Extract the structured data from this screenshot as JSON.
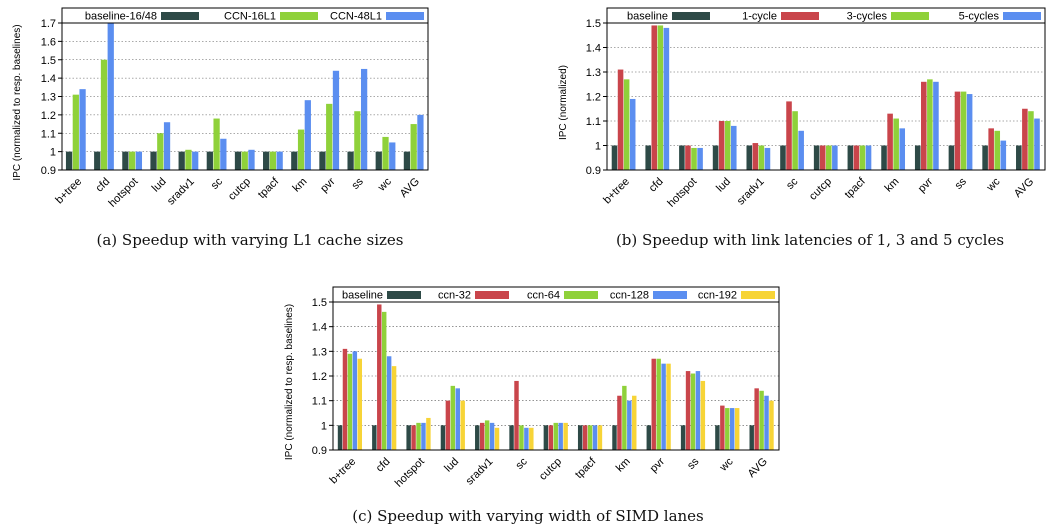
{
  "chart_data": [
    {
      "type": "bar",
      "caption": "(a) Speedup with varying L1 cache sizes",
      "ylabel": "IPC (normalized to resp. baselines)",
      "ylim": [
        0.9,
        1.7
      ],
      "yticks": [
        "0.9",
        "1",
        "1.1",
        "1.2",
        "1.3",
        "1.4",
        "1.5",
        "1.6",
        "1.7"
      ],
      "grid": "dashed horizontal",
      "legend_position": "top",
      "categories": [
        "b+tree",
        "cfd",
        "hotspot",
        "lud",
        "sradv1",
        "sc",
        "cutcp",
        "tpacf",
        "km",
        "pvr",
        "ss",
        "wc",
        "AVG"
      ],
      "series": [
        {
          "name": "baseline-16/48",
          "color": "#2e4a47",
          "values": [
            1,
            1,
            1,
            1,
            1,
            1,
            1,
            1,
            1,
            1,
            1,
            1,
            1
          ]
        },
        {
          "name": "CCN-16L1",
          "color": "#8fd13a",
          "values": [
            1.31,
            1.5,
            1.0,
            1.1,
            1.01,
            1.18,
            1.0,
            1.0,
            1.12,
            1.26,
            1.22,
            1.08,
            1.15
          ]
        },
        {
          "name": "CCN-48L1",
          "color": "#5b8ef0",
          "values": [
            1.34,
            1.7,
            1.0,
            1.16,
            1.0,
            1.07,
            1.01,
            1.0,
            1.28,
            1.44,
            1.45,
            1.05,
            1.2
          ]
        }
      ]
    },
    {
      "type": "bar",
      "caption": "(b) Speedup with link latencies of 1, 3 and 5 cycles",
      "ylabel": "IPC (normalized)",
      "ylim": [
        0.9,
        1.5
      ],
      "yticks": [
        "0.9",
        "1",
        "1.1",
        "1.2",
        "1.3",
        "1.4",
        "1.5"
      ],
      "grid": "dashed horizontal",
      "legend_position": "top",
      "categories": [
        "b+tree",
        "cfd",
        "hotspot",
        "lud",
        "sradv1",
        "sc",
        "cutcp",
        "tpacf",
        "km",
        "pvr",
        "ss",
        "wc",
        "AVG"
      ],
      "series": [
        {
          "name": "baseline",
          "color": "#2e4a47",
          "values": [
            1,
            1,
            1,
            1,
            1,
            1,
            1,
            1,
            1,
            1,
            1,
            1,
            1
          ]
        },
        {
          "name": "1-cycle",
          "color": "#c9454b",
          "values": [
            1.31,
            1.49,
            1.0,
            1.1,
            1.01,
            1.18,
            1.0,
            1.0,
            1.13,
            1.26,
            1.22,
            1.07,
            1.15
          ]
        },
        {
          "name": "3-cycles",
          "color": "#8fd13a",
          "values": [
            1.27,
            1.49,
            0.99,
            1.1,
            1.0,
            1.14,
            1.0,
            1.0,
            1.11,
            1.27,
            1.22,
            1.06,
            1.14
          ]
        },
        {
          "name": "5-cycles",
          "color": "#5b8ef0",
          "values": [
            1.19,
            1.48,
            0.99,
            1.08,
            0.99,
            1.06,
            1.0,
            1.0,
            1.07,
            1.26,
            1.21,
            1.02,
            1.11
          ]
        }
      ]
    },
    {
      "type": "bar",
      "caption": "(c) Speedup with varying width of SIMD lanes",
      "ylabel": "IPC (normalized to resp. baselines)",
      "ylim": [
        0.9,
        1.5
      ],
      "yticks": [
        "0.9",
        "1",
        "1.1",
        "1.2",
        "1.3",
        "1.4",
        "1.5"
      ],
      "grid": "dashed horizontal",
      "legend_position": "top",
      "categories": [
        "b+tree",
        "cfd",
        "hotspot",
        "lud",
        "sradv1",
        "sc",
        "cutcp",
        "tpacf",
        "km",
        "pvr",
        "ss",
        "wc",
        "AVG"
      ],
      "series": [
        {
          "name": "baseline",
          "color": "#2e4a47",
          "values": [
            1,
            1,
            1,
            1,
            1,
            1,
            1,
            1,
            1,
            1,
            1,
            1,
            1
          ]
        },
        {
          "name": "ccn-32",
          "color": "#c9454b",
          "values": [
            1.31,
            1.49,
            1.0,
            1.1,
            1.01,
            1.18,
            1.0,
            1.0,
            1.12,
            1.27,
            1.22,
            1.08,
            1.15
          ]
        },
        {
          "name": "ccn-64",
          "color": "#8fd13a",
          "values": [
            1.29,
            1.46,
            1.01,
            1.16,
            1.02,
            1.0,
            1.01,
            1.0,
            1.16,
            1.27,
            1.21,
            1.07,
            1.14
          ]
        },
        {
          "name": "ccn-128",
          "color": "#5b8ef0",
          "values": [
            1.3,
            1.28,
            1.01,
            1.15,
            1.01,
            0.99,
            1.01,
            1.0,
            1.1,
            1.25,
            1.22,
            1.07,
            1.12
          ]
        },
        {
          "name": "ccn-192",
          "color": "#f7d437",
          "values": [
            1.27,
            1.24,
            1.03,
            1.1,
            0.99,
            0.99,
            1.01,
            1.0,
            1.12,
            1.25,
            1.18,
            1.07,
            1.1
          ]
        }
      ]
    }
  ]
}
